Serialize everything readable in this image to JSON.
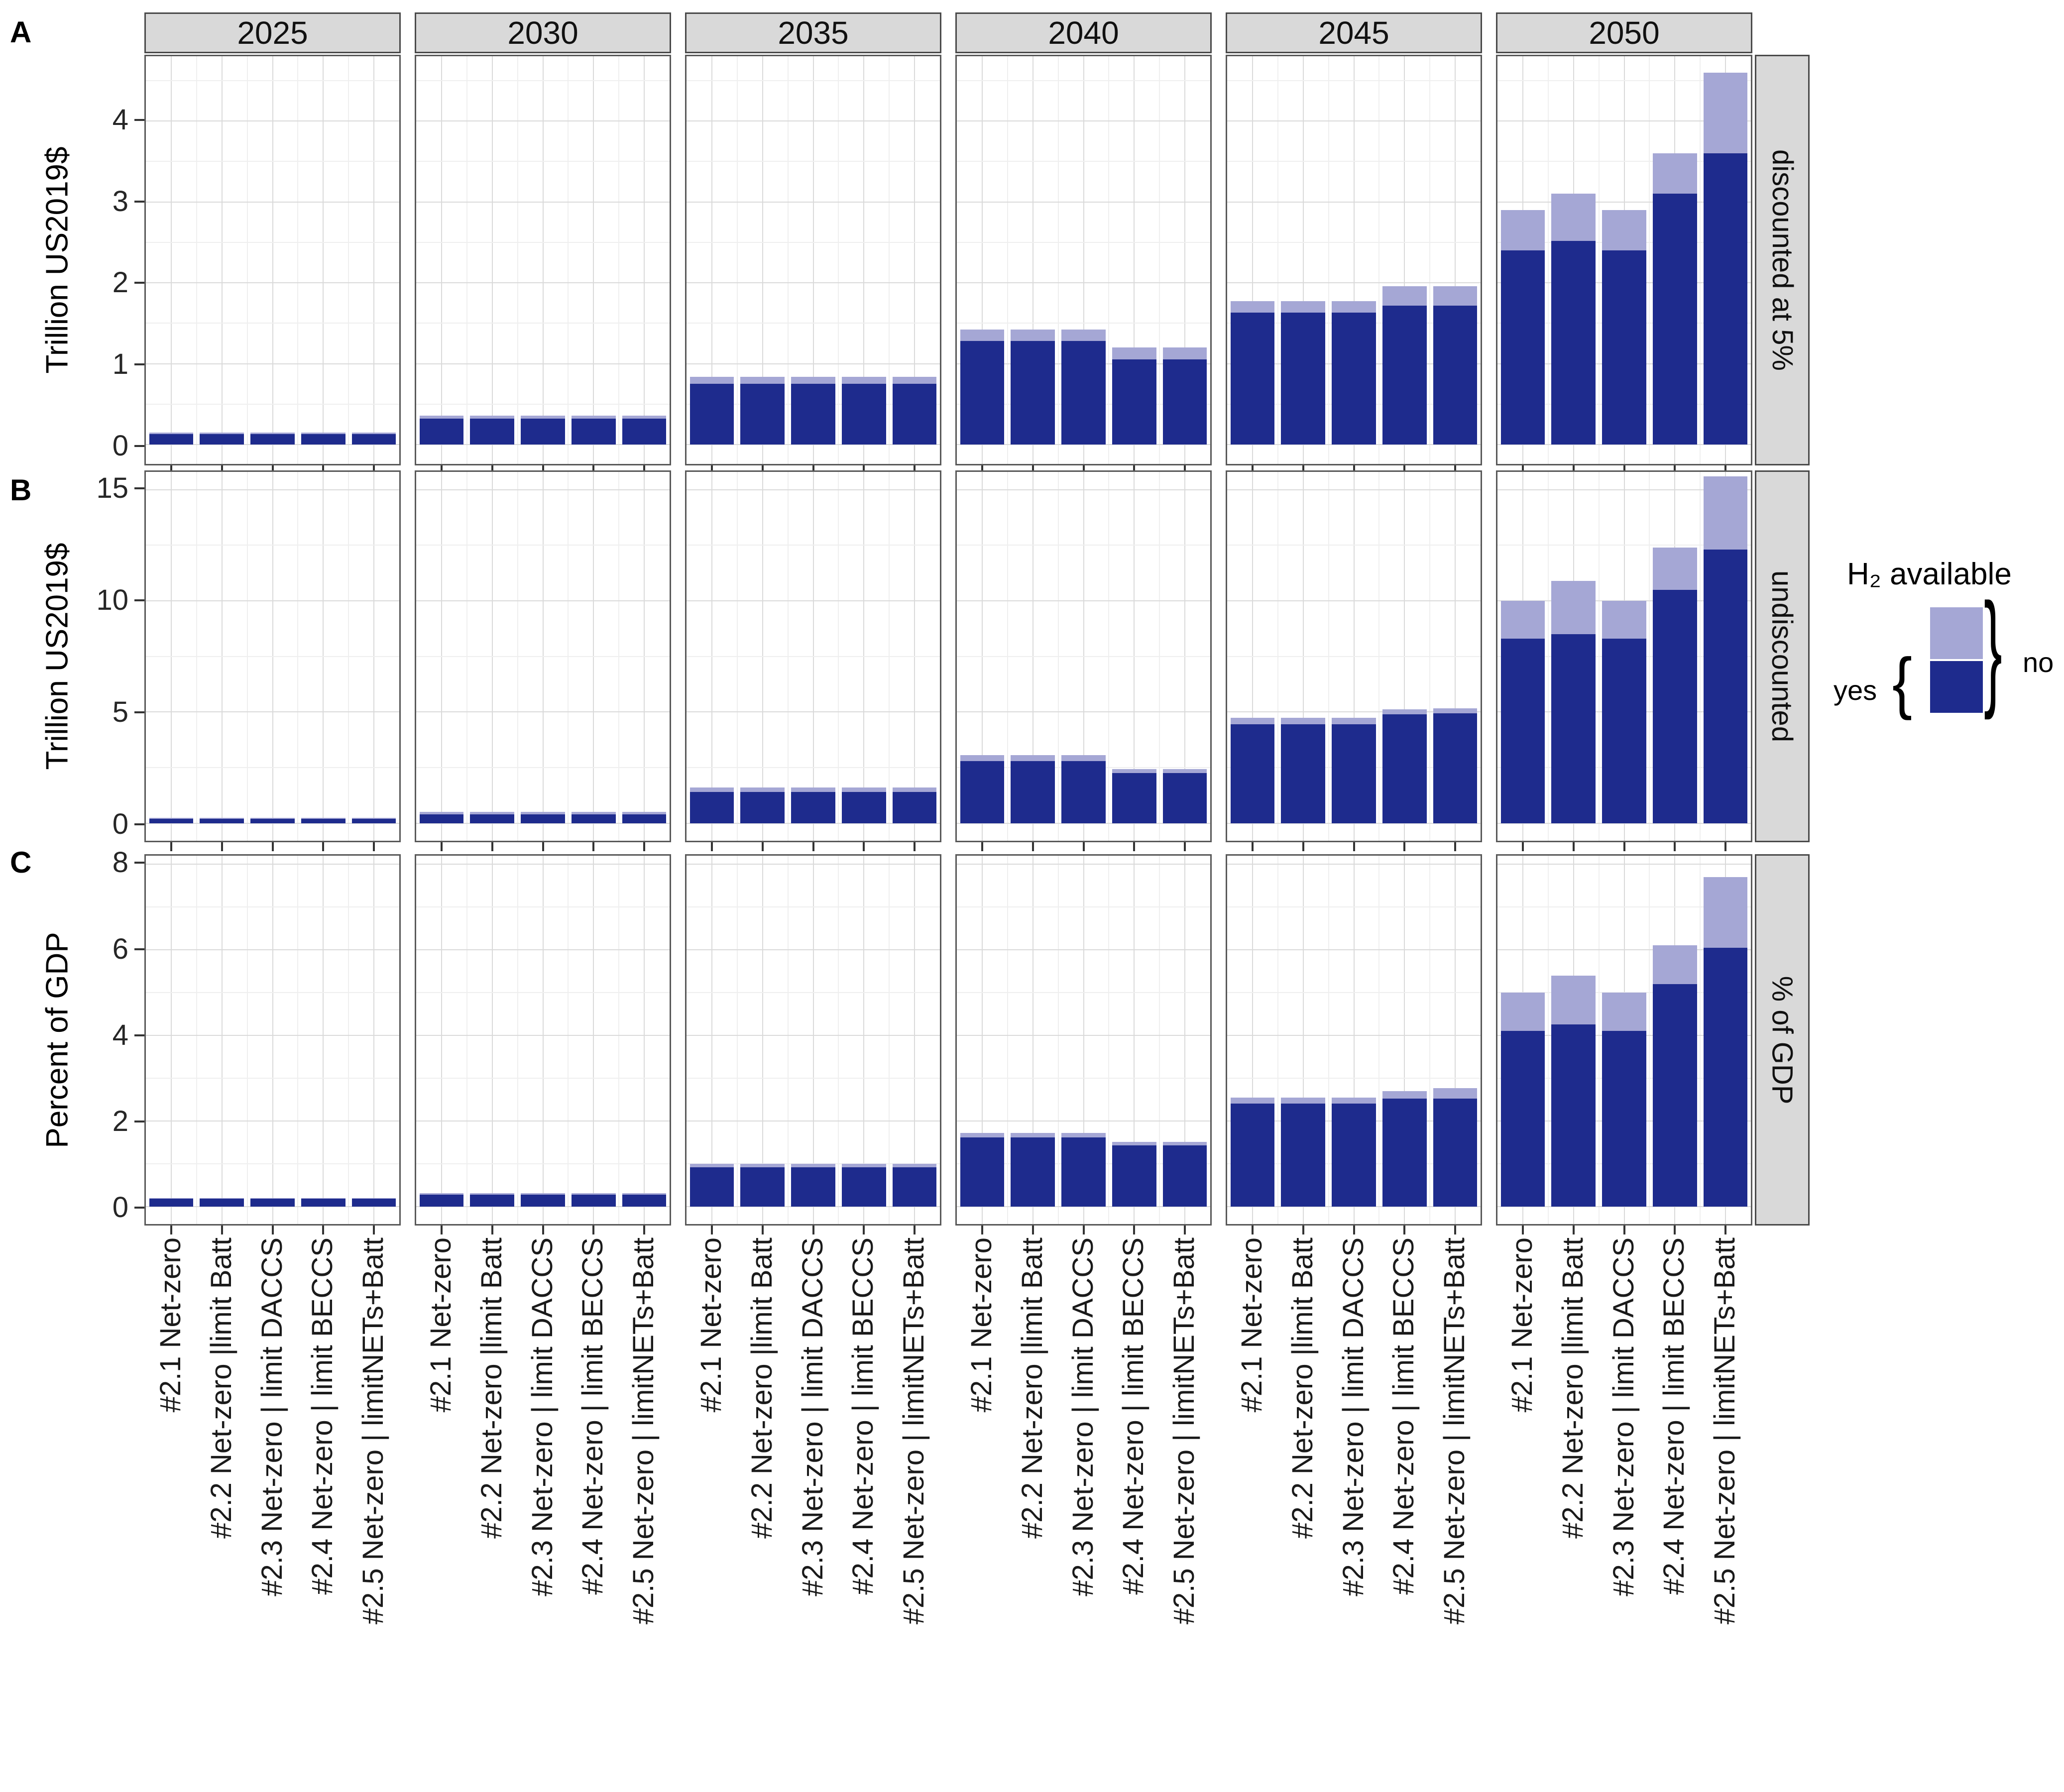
{
  "figure": {
    "panel_letters": [
      "A",
      "B",
      "C"
    ],
    "years": [
      "2025",
      "2030",
      "2035",
      "2040",
      "2045",
      "2050"
    ],
    "scenarios": [
      "#2.1 Net-zero",
      "#2.2 Net-zero |limit Batt",
      "#2.3 Net-zero | limit DACCS",
      "#2.4 Net-zero | limit BECCS",
      "#2.5 Net-zero | limitNETs+Batt"
    ]
  },
  "legend": {
    "title": "H₂ available",
    "yes_label": "yes",
    "no_label": "no",
    "left_brace": "{",
    "right_brace": "}"
  },
  "colors": {
    "yes": "#1e2b8d",
    "no": "#a5a7d5",
    "strip_bg": "#d9d9d9",
    "strip_border": "#4a4a4a",
    "panel_border": "#595959",
    "grid_major": "#dadada",
    "grid_minor": "#efefef",
    "tick_text": "#262626",
    "tick_mark": "#333333"
  },
  "chart_data": [
    {
      "type": "bar",
      "stacked": true,
      "panel_letter": "A",
      "row_strip_label": "discounted at 5%",
      "ylabel": "Trillion US2019$",
      "yticks": [
        0,
        1,
        2,
        3,
        4
      ],
      "minor_step": 0.5,
      "ylim": [
        -0.24,
        4.8
      ],
      "grid": true,
      "legend_position": "right",
      "categories_per_year": 5,
      "series_names": [
        "yes",
        "no"
      ],
      "values": {
        "2025": {
          "yes": [
            0.13,
            0.13,
            0.13,
            0.13,
            0.13
          ],
          "no": [
            0.02,
            0.02,
            0.02,
            0.02,
            0.02
          ]
        },
        "2030": {
          "yes": [
            0.32,
            0.32,
            0.32,
            0.32,
            0.32
          ],
          "no": [
            0.04,
            0.04,
            0.04,
            0.04,
            0.04
          ]
        },
        "2035": {
          "yes": [
            0.75,
            0.75,
            0.75,
            0.75,
            0.75
          ],
          "no": [
            0.09,
            0.09,
            0.09,
            0.09,
            0.09
          ]
        },
        "2040": {
          "yes": [
            1.28,
            1.28,
            1.28,
            1.05,
            1.05
          ],
          "no": [
            0.14,
            0.14,
            0.14,
            0.15,
            0.15
          ]
        },
        "2045": {
          "yes": [
            1.63,
            1.63,
            1.63,
            1.72,
            1.72
          ],
          "no": [
            0.14,
            0.14,
            0.14,
            0.24,
            0.24
          ]
        },
        "2050": {
          "yes": [
            2.4,
            2.52,
            2.4,
            3.1,
            3.6
          ],
          "no": [
            0.5,
            0.58,
            0.5,
            0.5,
            1.0
          ]
        }
      }
    },
    {
      "type": "bar",
      "stacked": true,
      "panel_letter": "B",
      "row_strip_label": "undiscounted",
      "ylabel": "Trillion US2019$",
      "yticks": [
        0,
        5,
        10,
        15
      ],
      "minor_step": 2.5,
      "ylim": [
        -0.79,
        15.8
      ],
      "grid": true,
      "legend_position": "right",
      "categories_per_year": 5,
      "series_names": [
        "yes",
        "no"
      ],
      "values": {
        "2025": {
          "yes": [
            0.2,
            0.2,
            0.2,
            0.2,
            0.2
          ],
          "no": [
            0.05,
            0.05,
            0.05,
            0.05,
            0.05
          ]
        },
        "2030": {
          "yes": [
            0.4,
            0.4,
            0.4,
            0.4,
            0.4
          ],
          "no": [
            0.1,
            0.1,
            0.1,
            0.1,
            0.1
          ]
        },
        "2035": {
          "yes": [
            1.4,
            1.4,
            1.4,
            1.4,
            1.4
          ],
          "no": [
            0.2,
            0.2,
            0.2,
            0.2,
            0.2
          ]
        },
        "2040": {
          "yes": [
            2.8,
            2.8,
            2.8,
            2.25,
            2.25
          ],
          "no": [
            0.25,
            0.25,
            0.25,
            0.18,
            0.18
          ]
        },
        "2045": {
          "yes": [
            4.45,
            4.45,
            4.45,
            4.9,
            4.95
          ],
          "no": [
            0.28,
            0.28,
            0.28,
            0.22,
            0.22
          ]
        },
        "2050": {
          "yes": [
            8.3,
            8.5,
            8.3,
            10.5,
            12.3
          ],
          "no": [
            1.7,
            2.4,
            1.7,
            1.9,
            3.3
          ]
        }
      }
    },
    {
      "type": "bar",
      "stacked": true,
      "panel_letter": "C",
      "row_strip_label": "% of GDP",
      "ylabel": "Percent of GDP",
      "yticks": [
        0,
        2,
        4,
        6,
        8
      ],
      "minor_step": 1,
      "ylim": [
        -0.41,
        8.2
      ],
      "grid": true,
      "legend_position": "right",
      "categories_per_year": 5,
      "series_names": [
        "yes",
        "no"
      ],
      "values": {
        "2025": {
          "yes": [
            0.18,
            0.18,
            0.18,
            0.18,
            0.18
          ],
          "no": [
            0.02,
            0.02,
            0.02,
            0.02,
            0.02
          ]
        },
        "2030": {
          "yes": [
            0.28,
            0.28,
            0.28,
            0.28,
            0.28
          ],
          "no": [
            0.03,
            0.03,
            0.03,
            0.03,
            0.03
          ]
        },
        "2035": {
          "yes": [
            0.92,
            0.92,
            0.92,
            0.92,
            0.92
          ],
          "no": [
            0.08,
            0.08,
            0.08,
            0.08,
            0.08
          ]
        },
        "2040": {
          "yes": [
            1.62,
            1.62,
            1.62,
            1.43,
            1.43
          ],
          "no": [
            0.1,
            0.1,
            0.1,
            0.08,
            0.08
          ]
        },
        "2045": {
          "yes": [
            2.4,
            2.4,
            2.4,
            2.52,
            2.52
          ],
          "no": [
            0.15,
            0.15,
            0.15,
            0.18,
            0.25
          ]
        },
        "2050": {
          "yes": [
            4.1,
            4.25,
            4.1,
            5.2,
            6.05
          ],
          "no": [
            0.9,
            1.15,
            0.9,
            0.9,
            1.65
          ]
        }
      }
    }
  ]
}
